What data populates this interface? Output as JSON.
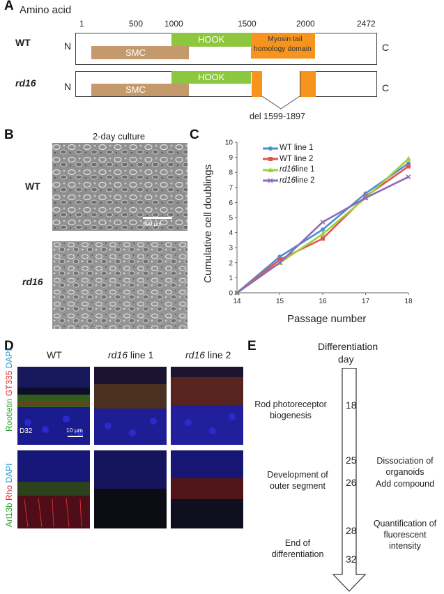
{
  "panelA": {
    "letter": "A",
    "title": "Amino acid",
    "ticks": [
      "1",
      "500",
      "1000",
      "1500",
      "2000",
      "2472"
    ],
    "wt": {
      "label": "WT",
      "n": "N",
      "c": "C"
    },
    "rd16": {
      "label": "rd16",
      "n": "N",
      "c": "C"
    },
    "domains": {
      "hook": "HOOK",
      "smc": "SMC",
      "myosin_line1": "Myosin tail",
      "myosin_line2": "homology domain"
    },
    "deletion": "del 1599-1897",
    "colors": {
      "hook": "#8dc63f",
      "smc": "#c49a6c",
      "myosin": "#f7941d"
    }
  },
  "panelB": {
    "letter": "B",
    "title": "2-day culture",
    "row1": "WT",
    "row2": "rd16",
    "scalebar": "500 μm"
  },
  "panelC": {
    "letter": "C",
    "legend": [
      {
        "text": "WT line 1",
        "italic": "",
        "rest": "",
        "color": "#4a8fd1"
      },
      {
        "text": "WT line 2",
        "italic": "",
        "rest": "",
        "color": "#e0534f"
      },
      {
        "text": "",
        "italic": "rd16",
        "rest": " line 1",
        "color": "#9fcf3a"
      },
      {
        "text": "",
        "italic": "rd16",
        "rest": " line 2",
        "color": "#8e6bb8"
      }
    ]
  },
  "chart_data": {
    "type": "line",
    "xlabel": "Passage number",
    "ylabel": "Cumulative cell doublings",
    "x": [
      14,
      15,
      16,
      17,
      18
    ],
    "xlim": [
      14,
      18
    ],
    "ylim": [
      0,
      10
    ],
    "yticks": [
      0,
      1,
      2,
      3,
      4,
      5,
      6,
      7,
      8,
      9,
      10
    ],
    "series": [
      {
        "name": "WT line 1",
        "color": "#4a8fd1",
        "values": [
          0,
          2.4,
          4.2,
          6.6,
          8.6
        ]
      },
      {
        "name": "WT line 2",
        "color": "#e0534f",
        "values": [
          0,
          2.2,
          3.6,
          6.4,
          8.4
        ]
      },
      {
        "name": "rd16 line 1",
        "color": "#9fcf3a",
        "values": [
          0,
          2.0,
          3.9,
          6.3,
          8.9
        ]
      },
      {
        "name": "rd16 line 2",
        "color": "#8e6bb8",
        "values": [
          0,
          2.0,
          4.7,
          6.3,
          7.7
        ]
      }
    ]
  },
  "panelD": {
    "letter": "D",
    "columns": [
      {
        "italic": "",
        "rest": "WT"
      },
      {
        "italic": "rd16",
        "rest": " line 1"
      },
      {
        "italic": "rd16",
        "rest": " line 2"
      }
    ],
    "row1_stains": {
      "a": "Rootletin",
      "b": "GT335",
      "c": "DAPI"
    },
    "row2_stains": {
      "a": "Arl13b",
      "b": "Rho",
      "c": "DAPI"
    },
    "day_label": "D32",
    "scalebar": "10 μm"
  },
  "panelE": {
    "letter": "E",
    "title_line1": "Differentiation",
    "title_line2": "day",
    "days": [
      "18",
      "25",
      "26",
      "28",
      "32"
    ],
    "left_events": [
      [
        "Rod photoreceptor",
        "biogenesis"
      ],
      [
        "Development of",
        "outer segment"
      ],
      [
        "End of",
        "differentiation"
      ]
    ],
    "right_events": [
      [
        "Dissociation of",
        "organoids"
      ],
      [
        "Add compound"
      ],
      [
        "Quantification of",
        "fluorescent intensity"
      ]
    ]
  }
}
